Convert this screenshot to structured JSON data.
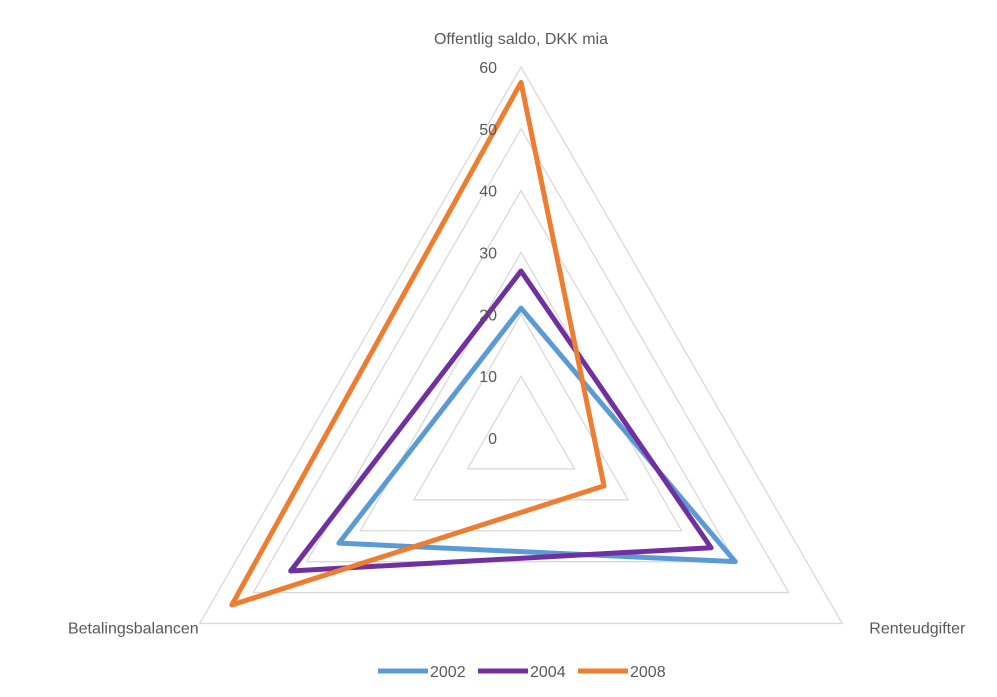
{
  "chart_data": {
    "type": "radar",
    "title": "",
    "axes": [
      "Offentlig saldo, DKK mia",
      "Renteudgifter",
      "Betalingsbalancen"
    ],
    "ticks": [
      "0",
      "10",
      "20",
      "30",
      "40",
      "50",
      "60"
    ],
    "range": [
      0,
      60
    ],
    "grid": true,
    "legend_position": "bottom",
    "series": [
      {
        "name": "2002",
        "values": [
          21,
          40,
          34
        ],
        "color": "#5b9bd5"
      },
      {
        "name": "2004",
        "values": [
          27,
          35.5,
          43
        ],
        "color": "#7030a0"
      },
      {
        "name": "2008",
        "values": [
          57.5,
          15.5,
          54
        ],
        "color": "#ed7d31"
      }
    ],
    "grid_color": "#d9d9d9",
    "text_color": "#595959"
  }
}
